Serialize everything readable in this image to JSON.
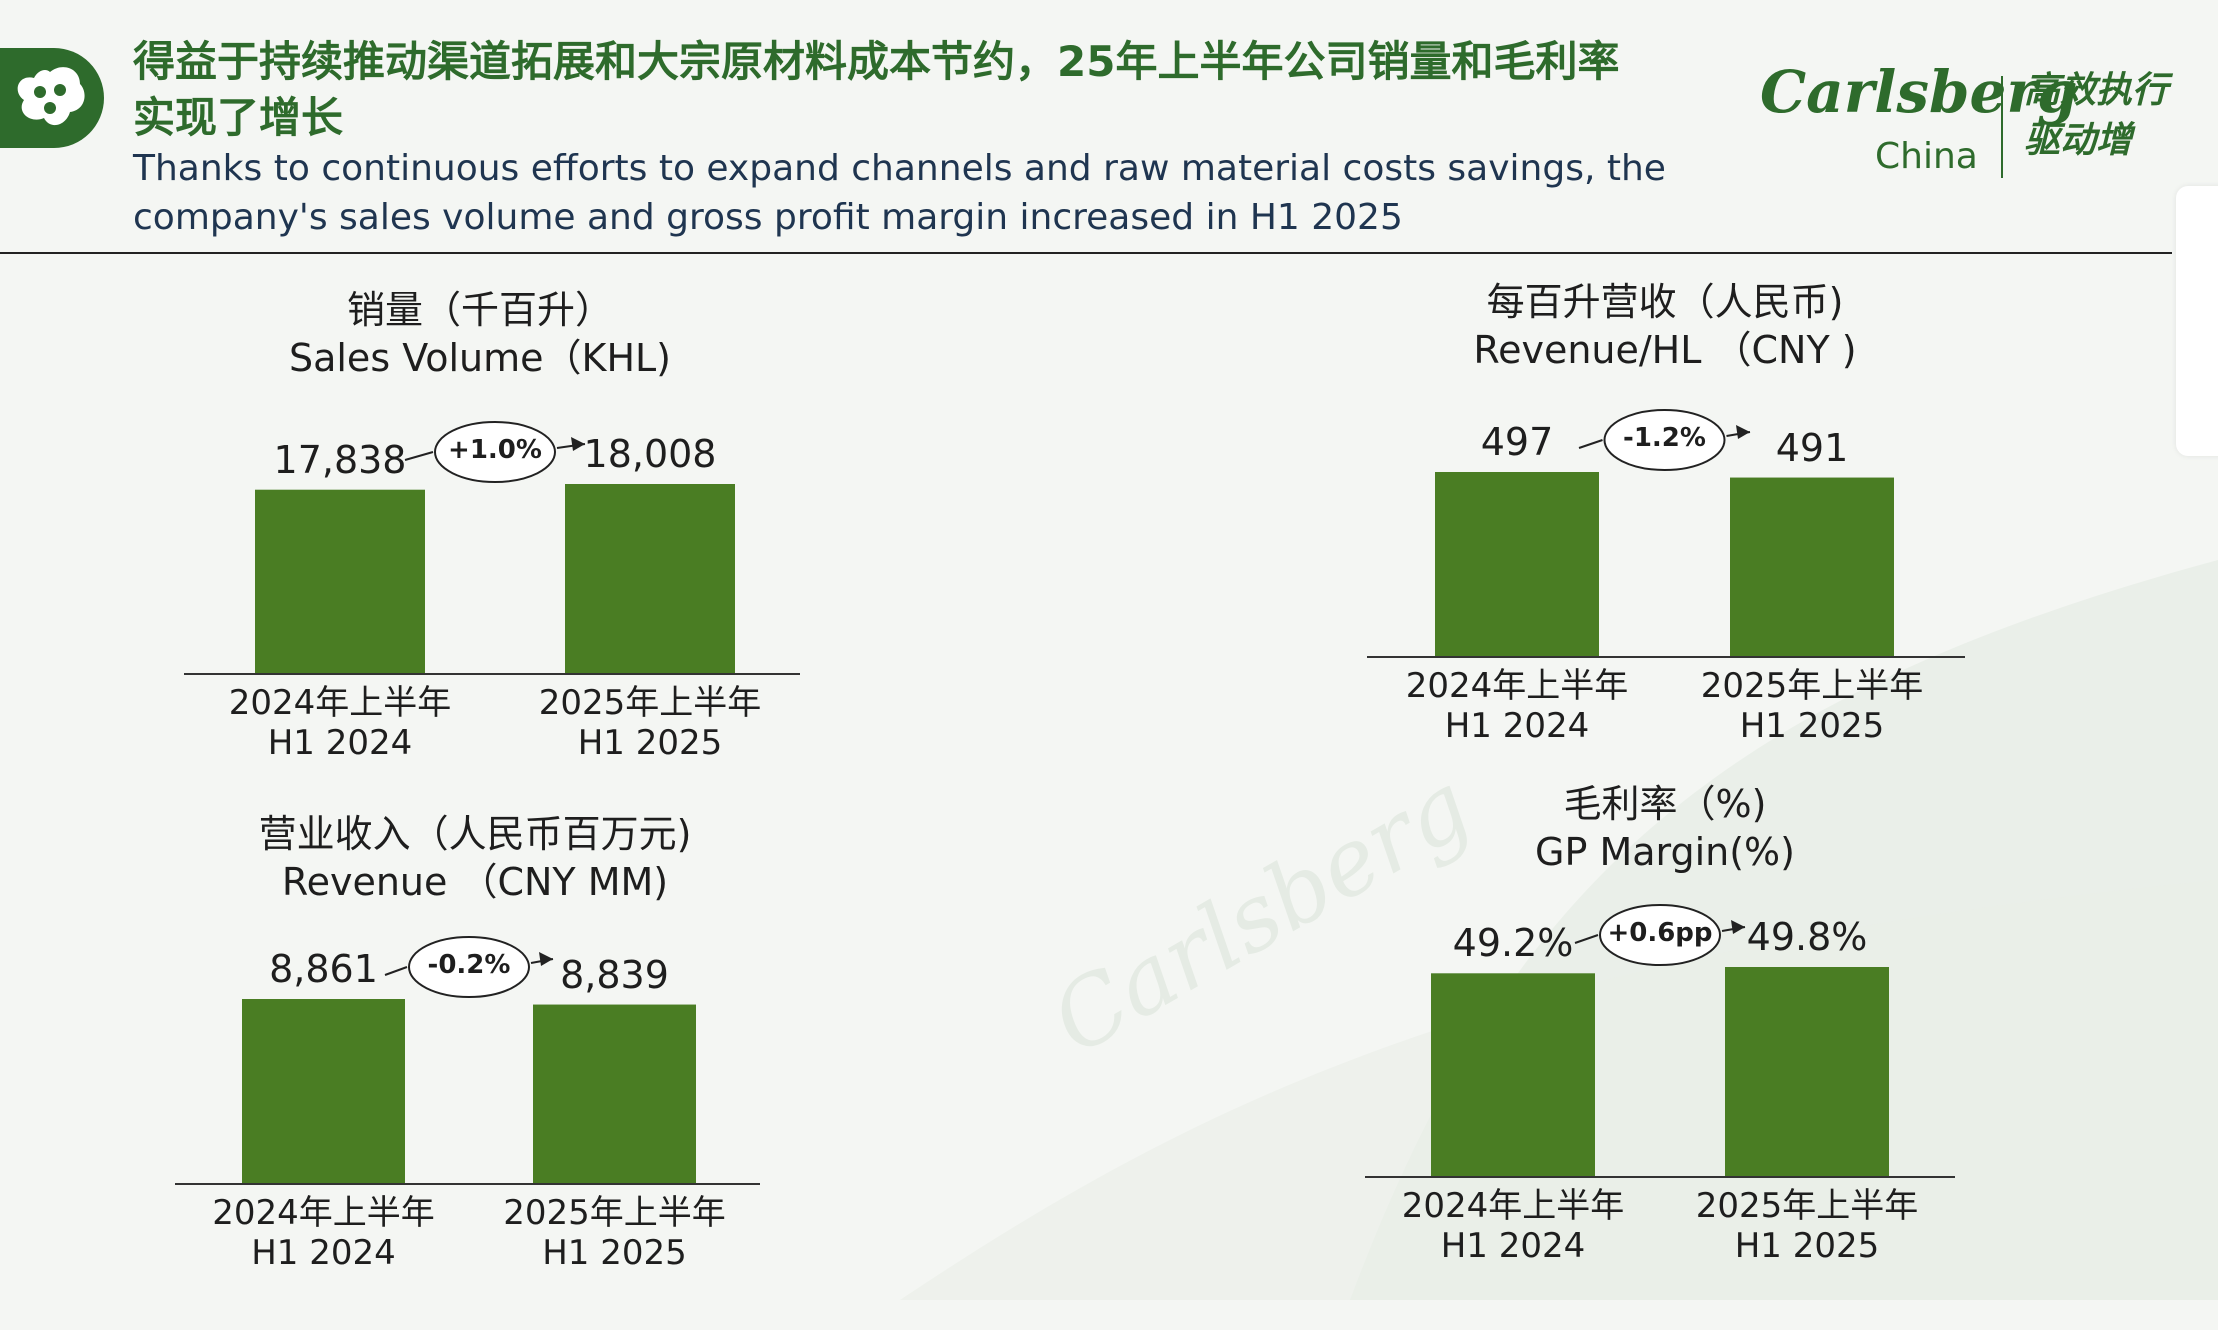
{
  "header": {
    "title_zh": "得益于持续推动渠道拓展和大宗原材料成本节约，25年上半年公司销量和毛利率实现了增长",
    "title_en": "Thanks to continuous efforts to expand channels and raw material costs savings, the company's sales volume and gross profit margin increased in H1 2025",
    "brand_name": "Carlsberg",
    "brand_sub": "China",
    "slogan": "高效执行 驱动增"
  },
  "colors": {
    "bar": "#4a7d23",
    "brand": "#2e6b2c"
  },
  "chart_data": [
    {
      "type": "bar",
      "title": "销量（千百升）",
      "subtitle": "Sales Volume（KHL)",
      "categories": [
        "2024年上半年",
        "2025年上半年"
      ],
      "categories_en": [
        "H1 2024",
        "H1 2025"
      ],
      "values": [
        17838,
        18008
      ],
      "value_labels": [
        "17,838",
        "18,008"
      ],
      "change": "+1.0%"
    },
    {
      "type": "bar",
      "title": "每百升营收（人民币)",
      "subtitle": "Revenue/HL （CNY )",
      "categories": [
        "2024年上半年",
        "2025年上半年"
      ],
      "categories_en": [
        "H1 2024",
        "H1 2025"
      ],
      "values": [
        497,
        491
      ],
      "value_labels": [
        "497",
        "491"
      ],
      "change": "-1.2%"
    },
    {
      "type": "bar",
      "title": "营业收入（人民币百万元)",
      "subtitle": "Revenue （CNY MM)",
      "categories": [
        "2024年上半年",
        "2025年上半年"
      ],
      "categories_en": [
        "H1 2024",
        "H1 2025"
      ],
      "values": [
        8861,
        8839
      ],
      "value_labels": [
        "8,861",
        "8,839"
      ],
      "change": "-0.2%"
    },
    {
      "type": "bar",
      "title": "毛利率（%)",
      "subtitle": "GP Margin(%)",
      "categories": [
        "2024年上半年",
        "2025年上半年"
      ],
      "categories_en": [
        "H1 2024",
        "H1 2025"
      ],
      "values": [
        49.2,
        49.8
      ],
      "value_labels": [
        "49.2%",
        "49.8%"
      ],
      "change": "+0.6pp"
    }
  ]
}
